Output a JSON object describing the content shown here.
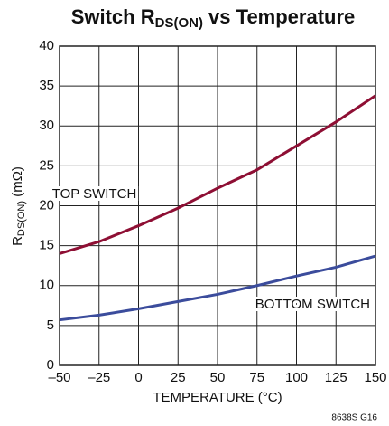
{
  "chart_data": {
    "type": "line",
    "title": [
      "Switch R",
      "DS(ON)",
      " vs Temperature"
    ],
    "ylabel": [
      "R",
      "DS(ON)",
      " (mΩ)"
    ],
    "xlabel": "TEMPERATURE (°C)",
    "footnote": "8638S G16",
    "x": [
      -50,
      -25,
      0,
      25,
      50,
      75,
      100,
      125,
      150
    ],
    "series": [
      {
        "name": "TOP SWITCH",
        "color": "#8e0f34",
        "values": [
          14,
          15.5,
          17.5,
          19.7,
          22.2,
          24.5,
          27.5,
          30.5,
          33.8
        ]
      },
      {
        "name": "BOTTOM SWITCH",
        "color": "#3b4c9c",
        "values": [
          5.7,
          6.3,
          7.1,
          8,
          8.9,
          10,
          11.2,
          12.3,
          13.7
        ]
      }
    ],
    "xlim": [
      -50,
      150
    ],
    "xticks": [
      {
        "value": -50,
        "label": "–50"
      },
      {
        "value": -25,
        "label": "–25"
      },
      0,
      25,
      50,
      75,
      100,
      125,
      150
    ],
    "ylim": [
      0,
      40
    ],
    "yticks": [
      0,
      5,
      10,
      15,
      20,
      25,
      30,
      35,
      40
    ],
    "grid": true
  }
}
